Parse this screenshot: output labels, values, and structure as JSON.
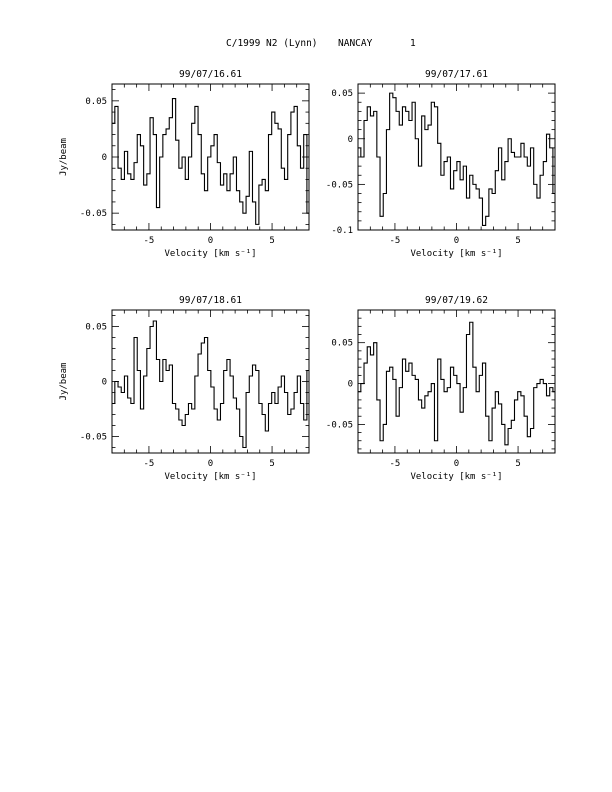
{
  "header": {
    "object": "C/1999 N2 (Lynn)",
    "observatory": "NANCAY",
    "page_number": "1"
  },
  "chart_data": [
    {
      "type": "line",
      "title": "99/07/16.61",
      "xlabel": "Velocity [km s⁻¹]",
      "ylabel": "Jy/beam",
      "xlim": [
        -8,
        8
      ],
      "ylim": [
        -0.065,
        0.065
      ],
      "xticks": [
        "-5",
        "0",
        "5"
      ],
      "yticks": [
        "0.05",
        "0",
        "-0.05"
      ],
      "grid": false,
      "x_start": -7.9,
      "x_step": 0.26,
      "values": [
        0.03,
        0.045,
        -0.01,
        -0.02,
        0.005,
        -0.015,
        -0.02,
        -0.005,
        0.02,
        0.01,
        -0.025,
        -0.015,
        0.035,
        0.02,
        -0.045,
        0.0,
        0.02,
        0.025,
        0.035,
        0.052,
        0.015,
        -0.01,
        0.0,
        -0.02,
        0.0,
        0.03,
        0.045,
        0.02,
        -0.015,
        -0.03,
        0.0,
        0.01,
        0.02,
        -0.005,
        -0.025,
        -0.015,
        -0.03,
        -0.015,
        0.0,
        -0.03,
        -0.04,
        -0.05,
        -0.035,
        0.005,
        -0.04,
        -0.06,
        -0.025,
        -0.02,
        -0.03,
        0.02,
        0.04,
        0.03,
        0.025,
        -0.01,
        -0.02,
        0.02,
        0.04,
        0.045,
        0.01,
        -0.01,
        0.02,
        -0.05,
        -0.02,
        -0.015,
        0.01,
        0.035,
        0.04,
        0.055,
        0.03,
        0.0,
        -0.02,
        0.01,
        0.035,
        0.045,
        0.01,
        -0.02,
        0.0,
        0.045,
        0.06,
        0.03,
        0.0,
        -0.015,
        0.04,
        0.055,
        0.035,
        0.005,
        0.01,
        -0.02,
        0.02,
        0.04,
        0.05,
        0.06
      ]
    },
    {
      "type": "line",
      "title": "99/07/17.61",
      "xlabel": "Velocity [km s⁻¹]",
      "ylabel": "",
      "xlim": [
        -8,
        8
      ],
      "ylim": [
        -0.1,
        0.06
      ],
      "xticks": [
        "-5",
        "0",
        "5"
      ],
      "yticks": [
        "0.05",
        "0",
        "-0.05",
        "-0.1"
      ],
      "grid": false,
      "x_start": -7.9,
      "x_step": 0.26,
      "values": [
        -0.01,
        -0.02,
        0.02,
        0.035,
        0.025,
        0.03,
        -0.02,
        -0.085,
        -0.06,
        0.01,
        0.05,
        0.045,
        0.03,
        0.015,
        0.035,
        0.03,
        0.02,
        0.04,
        0.0,
        -0.03,
        0.025,
        0.01,
        0.015,
        0.04,
        0.035,
        -0.005,
        -0.04,
        -0.025,
        -0.02,
        -0.055,
        -0.035,
        -0.025,
        -0.045,
        -0.03,
        -0.065,
        -0.04,
        -0.05,
        -0.055,
        -0.065,
        -0.095,
        -0.085,
        -0.055,
        -0.06,
        -0.035,
        -0.01,
        -0.045,
        -0.025,
        0.0,
        -0.015,
        -0.02,
        -0.02,
        -0.005,
        -0.02,
        -0.03,
        -0.01,
        -0.05,
        -0.065,
        -0.04,
        -0.025,
        0.005,
        -0.01,
        -0.06,
        -0.07,
        -0.01,
        0.035,
        0.045,
        0.025,
        0.02,
        0.03,
        0.005,
        0.0,
        0.03,
        0.015,
        0.045,
        0.03,
        0.025,
        0.01,
        0.055,
        0.035,
        0.04,
        0.025
      ]
    },
    {
      "type": "line",
      "title": "99/07/18.61",
      "xlabel": "Velocity [km s⁻¹]",
      "ylabel": "Jy/beam",
      "xlim": [
        -8,
        8
      ],
      "ylim": [
        -0.065,
        0.065
      ],
      "xticks": [
        "-5",
        "0",
        "5"
      ],
      "yticks": [
        "0.05",
        "0",
        "-0.05"
      ],
      "grid": false,
      "x_start": -7.9,
      "x_step": 0.26,
      "values": [
        -0.02,
        0.0,
        -0.005,
        -0.01,
        0.005,
        -0.015,
        -0.02,
        0.04,
        0.01,
        -0.025,
        0.005,
        0.03,
        0.05,
        0.055,
        0.02,
        0.0,
        0.02,
        0.01,
        0.015,
        -0.02,
        -0.025,
        -0.035,
        -0.04,
        -0.03,
        -0.02,
        -0.025,
        0.005,
        0.025,
        0.035,
        0.04,
        0.01,
        -0.005,
        -0.025,
        -0.035,
        -0.02,
        0.01,
        0.02,
        0.005,
        -0.015,
        -0.025,
        -0.05,
        -0.06,
        -0.01,
        0.005,
        0.015,
        0.01,
        -0.02,
        -0.03,
        -0.045,
        -0.02,
        -0.01,
        -0.02,
        -0.005,
        0.005,
        -0.01,
        -0.03,
        -0.025,
        -0.01,
        0.005,
        -0.02,
        -0.035,
        0.01,
        0.015,
        0.025,
        0.03,
        0.005,
        -0.015,
        -0.02,
        -0.02,
        -0.04,
        0.02,
        0.045,
        0.06,
        0.04,
        0.02,
        -0.01,
        -0.02,
        -0.005,
        0.01,
        0.03,
        0.035,
        0.005,
        -0.015,
        -0.025,
        0.01,
        0.04,
        0.045,
        0.0,
        -0.02,
        0.0
      ]
    },
    {
      "type": "line",
      "title": "99/07/19.62",
      "xlabel": "Velocity [km s⁻¹]",
      "ylabel": "",
      "xlim": [
        -8,
        8
      ],
      "ylim": [
        -0.085,
        0.09
      ],
      "xticks": [
        "-5",
        "0",
        "5"
      ],
      "yticks": [
        "0.05",
        "0",
        "-0.05"
      ],
      "grid": false,
      "x_start": -7.9,
      "x_step": 0.26,
      "values": [
        -0.01,
        0.0,
        0.025,
        0.045,
        0.035,
        0.05,
        -0.02,
        -0.07,
        -0.05,
        0.015,
        0.02,
        0.005,
        -0.04,
        -0.005,
        0.03,
        0.015,
        0.025,
        0.01,
        0.005,
        -0.02,
        -0.03,
        -0.015,
        -0.01,
        0.0,
        -0.07,
        0.03,
        0.005,
        -0.01,
        -0.005,
        0.02,
        0.01,
        0.0,
        -0.035,
        -0.005,
        0.06,
        0.075,
        0.02,
        -0.01,
        0.01,
        0.025,
        -0.04,
        -0.07,
        -0.03,
        -0.01,
        -0.025,
        -0.05,
        -0.075,
        -0.055,
        -0.045,
        -0.02,
        -0.01,
        -0.015,
        -0.04,
        -0.065,
        -0.055,
        -0.005,
        0.0,
        0.005,
        0.0,
        -0.015,
        -0.005,
        -0.01,
        -0.02,
        -0.04,
        -0.015,
        0.015,
        0.025,
        0.01,
        0.005,
        0.02,
        0.025,
        0.01,
        -0.02,
        -0.04,
        -0.005,
        0.0,
        0.015,
        0.025,
        0.04,
        0.06,
        0.045,
        -0.02,
        -0.05,
        0.01,
        0.03,
        0.045,
        0.07,
        0.04,
        0.0,
        -0.01,
        -0.005,
        -0.015
      ]
    }
  ]
}
